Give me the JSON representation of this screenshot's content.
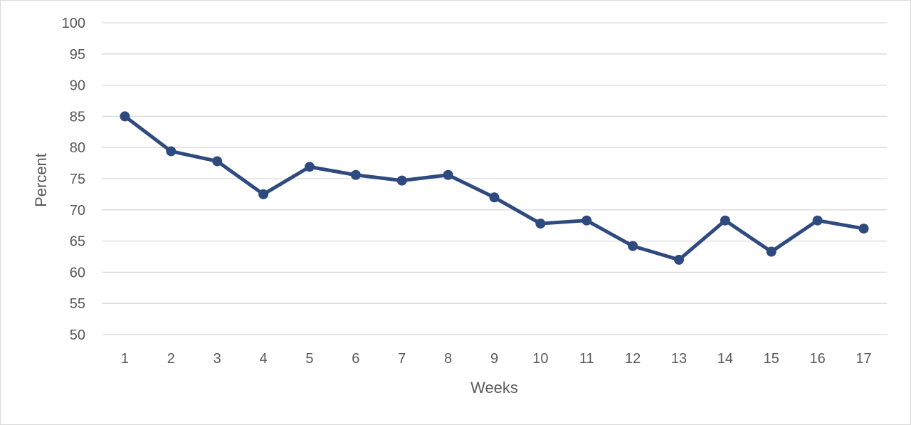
{
  "chart_data": {
    "type": "line",
    "title": "",
    "xlabel": "Weeks",
    "ylabel": "Percent",
    "ylim": [
      50,
      100
    ],
    "ytick_step": 5,
    "yticks": [
      "50",
      "55",
      "60",
      "65",
      "70",
      "75",
      "80",
      "85",
      "90",
      "95",
      "100"
    ],
    "categories": [
      "1",
      "2",
      "3",
      "4",
      "5",
      "6",
      "7",
      "8",
      "9",
      "10",
      "11",
      "12",
      "13",
      "14",
      "15",
      "16",
      "17"
    ],
    "series": [
      {
        "color": "#2f4a7f",
        "values": [
          85.0,
          79.4,
          77.8,
          72.5,
          76.9,
          75.6,
          74.7,
          75.6,
          72.0,
          67.8,
          68.3,
          64.2,
          62.0,
          68.3,
          63.3,
          68.3,
          67.0
        ]
      }
    ],
    "grid": true,
    "legend": "none",
    "gridline_color": "#d9d9d9",
    "text_color": "#595959"
  }
}
